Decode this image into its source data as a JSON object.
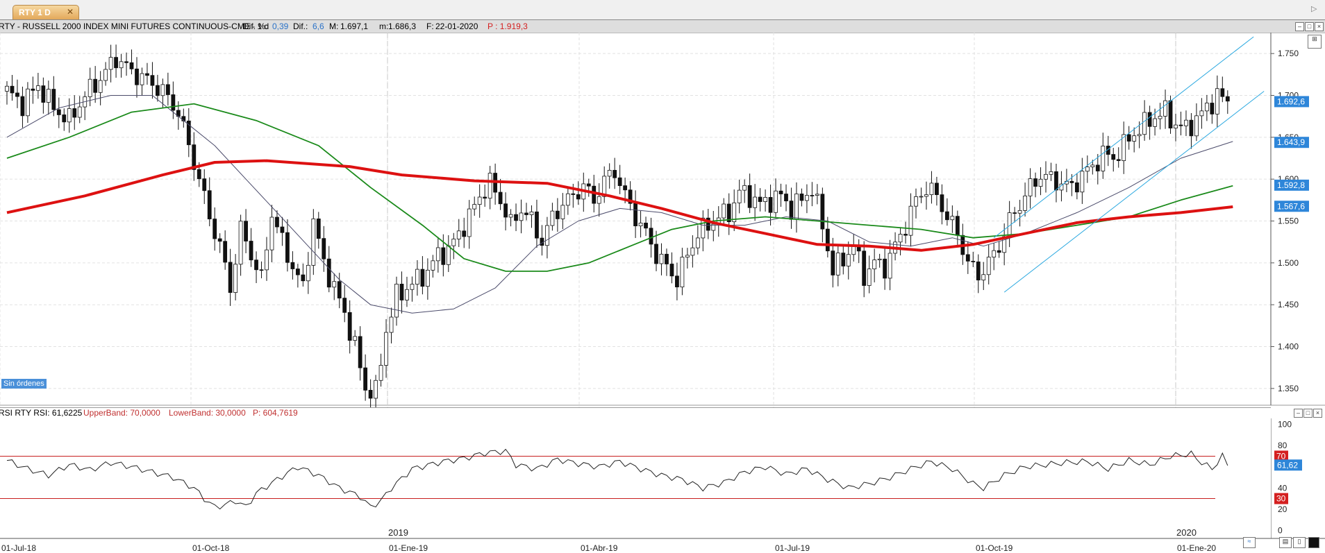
{
  "tab": {
    "label": "RTY 1 D",
    "close": "✕"
  },
  "header": {
    "symbol_text": "RTY - RUSSELL 2000 INDEX MINI FUTURES CONTINUOUS-CME -  1 d",
    "dif_pct_label": "Dif. %:",
    "dif_pct_value": "0,39",
    "dif_label": "Dif.:",
    "dif_value": "6,6",
    "max_label": "M:",
    "max_value": "1.697,1",
    "min_label": "m:",
    "min_value": "1.686,3",
    "date_label": "F:",
    "date_value": "22-01-2020",
    "p_label": "P : 1.919,3"
  },
  "orders_badge": "Sin órdenes",
  "rsi_header": {
    "name": "RSI RTY RSI: 61,6225",
    "upper": "UpperBand: 70,0000",
    "lower": "LowerBand: 30,0000",
    "p": "P: 604,7619"
  },
  "colors": {
    "sma_fast": "#4a4a6a",
    "sma_mid": "#1a8a1a",
    "sma_slow": "#dd1111",
    "channel": "#2aa8e0",
    "price_tag": "#2e86d9",
    "band_tag": "#d42020"
  },
  "chart_data": [
    {
      "type": "candlestick",
      "title": "RTY - RUSSELL 2000 INDEX MINI FUTURES CONTINUOUS-CME - 1 d",
      "x_ticks": [
        "01-Jul-18",
        "01-Oct-18",
        "01-Ene-19",
        "01-Abr-19",
        "01-Jul-19",
        "01-Oct-19",
        "01-Ene-20"
      ],
      "year_markers": [
        "2019",
        "2020"
      ],
      "y_ticks": [
        "1.750",
        "1.700",
        "1.650",
        "1.600",
        "1.550",
        "1.500",
        "1.450",
        "1.400",
        "1.350"
      ],
      "ylim": [
        1330,
        1775
      ],
      "grid": true,
      "price_tags": [
        "1.692,6",
        "1.643,9",
        "1.592,8",
        "1.567,6"
      ],
      "close_path": [
        [
          0,
          1705
        ],
        [
          3,
          1690
        ],
        [
          6,
          1712
        ],
        [
          9,
          1685
        ],
        [
          12,
          1670
        ],
        [
          15,
          1700
        ],
        [
          18,
          1720
        ],
        [
          21,
          1745
        ],
        [
          24,
          1728
        ],
        [
          27,
          1718
        ],
        [
          30,
          1705
        ],
        [
          33,
          1680
        ],
        [
          35,
          1640
        ],
        [
          37,
          1600
        ],
        [
          39,
          1555
        ],
        [
          41,
          1520
        ],
        [
          43,
          1470
        ],
        [
          45,
          1540
        ],
        [
          47,
          1510
        ],
        [
          49,
          1480
        ],
        [
          51,
          1560
        ],
        [
          53,
          1525
        ],
        [
          55,
          1495
        ],
        [
          57,
          1470
        ],
        [
          59,
          1550
        ],
        [
          61,
          1500
        ],
        [
          63,
          1470
        ],
        [
          65,
          1440
        ],
        [
          67,
          1400
        ],
        [
          69,
          1350
        ],
        [
          71,
          1345
        ],
        [
          73,
          1420
        ],
        [
          75,
          1460
        ],
        [
          77,
          1470
        ],
        [
          79,
          1480
        ],
        [
          81,
          1490
        ],
        [
          83,
          1510
        ],
        [
          85,
          1515
        ],
        [
          87,
          1535
        ],
        [
          89,
          1555
        ],
        [
          91,
          1580
        ],
        [
          93,
          1595
        ],
        [
          95,
          1575
        ],
        [
          97,
          1545
        ],
        [
          99,
          1565
        ],
        [
          101,
          1550
        ],
        [
          103,
          1525
        ],
        [
          105,
          1555
        ],
        [
          107,
          1570
        ],
        [
          109,
          1580
        ],
        [
          111,
          1592
        ],
        [
          113,
          1575
        ],
        [
          115,
          1598
        ],
        [
          117,
          1610
        ],
        [
          119,
          1580
        ],
        [
          121,
          1555
        ],
        [
          123,
          1535
        ],
        [
          125,
          1510
        ],
        [
          127,
          1495
        ],
        [
          129,
          1480
        ],
        [
          131,
          1510
        ],
        [
          133,
          1535
        ],
        [
          135,
          1545
        ],
        [
          137,
          1555
        ],
        [
          139,
          1560
        ],
        [
          141,
          1585
        ],
        [
          143,
          1580
        ],
        [
          145,
          1570
        ],
        [
          147,
          1575
        ],
        [
          149,
          1580
        ],
        [
          151,
          1565
        ],
        [
          153,
          1575
        ],
        [
          155,
          1590
        ],
        [
          157,
          1545
        ],
        [
          159,
          1490
        ],
        [
          161,
          1505
        ],
        [
          163,
          1520
        ],
        [
          165,
          1485
        ],
        [
          167,
          1500
        ],
        [
          169,
          1495
        ],
        [
          171,
          1520
        ],
        [
          173,
          1545
        ],
        [
          175,
          1575
        ],
        [
          177,
          1590
        ],
        [
          179,
          1580
        ],
        [
          181,
          1555
        ],
        [
          183,
          1535
        ],
        [
          185,
          1500
        ],
        [
          187,
          1485
        ],
        [
          189,
          1500
        ],
        [
          191,
          1520
        ],
        [
          193,
          1550
        ],
        [
          195,
          1570
        ],
        [
          197,
          1590
        ],
        [
          199,
          1605
        ],
        [
          201,
          1600
        ],
        [
          203,
          1595
        ],
        [
          205,
          1590
        ],
        [
          207,
          1605
        ],
        [
          209,
          1615
        ],
        [
          211,
          1630
        ],
        [
          213,
          1625
        ],
        [
          215,
          1640
        ],
        [
          217,
          1655
        ],
        [
          219,
          1665
        ],
        [
          221,
          1675
        ],
        [
          223,
          1680
        ],
        [
          225,
          1665
        ],
        [
          227,
          1660
        ],
        [
          229,
          1672
        ],
        [
          231,
          1685
        ],
        [
          233,
          1700
        ],
        [
          235,
          1692
        ]
      ],
      "sma_fast_path": [
        [
          0,
          1650
        ],
        [
          10,
          1685
        ],
        [
          20,
          1700
        ],
        [
          28,
          1700
        ],
        [
          34,
          1670
        ],
        [
          40,
          1640
        ],
        [
          46,
          1600
        ],
        [
          52,
          1560
        ],
        [
          58,
          1520
        ],
        [
          64,
          1480
        ],
        [
          70,
          1450
        ],
        [
          78,
          1440
        ],
        [
          86,
          1445
        ],
        [
          94,
          1470
        ],
        [
          102,
          1520
        ],
        [
          110,
          1550
        ],
        [
          118,
          1565
        ],
        [
          126,
          1560
        ],
        [
          134,
          1545
        ],
        [
          142,
          1545
        ],
        [
          150,
          1555
        ],
        [
          158,
          1550
        ],
        [
          166,
          1525
        ],
        [
          174,
          1520
        ],
        [
          182,
          1530
        ],
        [
          188,
          1520
        ],
        [
          196,
          1535
        ],
        [
          206,
          1560
        ],
        [
          216,
          1590
        ],
        [
          226,
          1625
        ],
        [
          236,
          1645
        ]
      ],
      "sma_mid_path": [
        [
          0,
          1625
        ],
        [
          12,
          1650
        ],
        [
          24,
          1680
        ],
        [
          36,
          1690
        ],
        [
          48,
          1670
        ],
        [
          60,
          1640
        ],
        [
          70,
          1590
        ],
        [
          80,
          1545
        ],
        [
          88,
          1505
        ],
        [
          96,
          1490
        ],
        [
          104,
          1490
        ],
        [
          112,
          1500
        ],
        [
          120,
          1520
        ],
        [
          128,
          1540
        ],
        [
          136,
          1550
        ],
        [
          146,
          1555
        ],
        [
          156,
          1550
        ],
        [
          166,
          1545
        ],
        [
          176,
          1540
        ],
        [
          186,
          1530
        ],
        [
          196,
          1535
        ],
        [
          206,
          1545
        ],
        [
          216,
          1555
        ],
        [
          226,
          1575
        ],
        [
          236,
          1592
        ]
      ],
      "sma_slow_path": [
        [
          0,
          1560
        ],
        [
          15,
          1580
        ],
        [
          30,
          1605
        ],
        [
          40,
          1620
        ],
        [
          50,
          1622
        ],
        [
          66,
          1615
        ],
        [
          76,
          1605
        ],
        [
          90,
          1598
        ],
        [
          104,
          1595
        ],
        [
          116,
          1580
        ],
        [
          126,
          1565
        ],
        [
          136,
          1548
        ],
        [
          146,
          1535
        ],
        [
          156,
          1522
        ],
        [
          166,
          1520
        ],
        [
          176,
          1515
        ],
        [
          186,
          1522
        ],
        [
          196,
          1535
        ],
        [
          206,
          1548
        ],
        [
          216,
          1555
        ],
        [
          226,
          1560
        ],
        [
          236,
          1567
        ]
      ],
      "channel": {
        "upper": [
          [
            190,
            1530
          ],
          [
            240,
            1770
          ]
        ],
        "lower": [
          [
            192,
            1465
          ],
          [
            242,
            1705
          ]
        ]
      }
    },
    {
      "type": "line",
      "title": "RSI RTY RSI: 61,6225",
      "y_ticks": [
        "100",
        "80",
        "60",
        "40",
        "20",
        "0"
      ],
      "ylim": [
        -5,
        105
      ],
      "upper_band": 70,
      "lower_band": 30,
      "band_tags": [
        "70",
        "30"
      ],
      "value_tag": "61,62",
      "rsi_path": [
        [
          0,
          66
        ],
        [
          4,
          58
        ],
        [
          8,
          52
        ],
        [
          12,
          62
        ],
        [
          16,
          57
        ],
        [
          20,
          64
        ],
        [
          24,
          60
        ],
        [
          28,
          55
        ],
        [
          32,
          50
        ],
        [
          36,
          40
        ],
        [
          38,
          30
        ],
        [
          40,
          22
        ],
        [
          42,
          24
        ],
        [
          44,
          28
        ],
        [
          46,
          22
        ],
        [
          48,
          35
        ],
        [
          52,
          48
        ],
        [
          56,
          60
        ],
        [
          60,
          52
        ],
        [
          64,
          40
        ],
        [
          68,
          32
        ],
        [
          70,
          22
        ],
        [
          72,
          28
        ],
        [
          74,
          40
        ],
        [
          78,
          58
        ],
        [
          84,
          65
        ],
        [
          88,
          68
        ],
        [
          92,
          73
        ],
        [
          96,
          75
        ],
        [
          98,
          62
        ],
        [
          102,
          58
        ],
        [
          106,
          67
        ],
        [
          110,
          63
        ],
        [
          114,
          60
        ],
        [
          118,
          65
        ],
        [
          122,
          58
        ],
        [
          126,
          52
        ],
        [
          130,
          48
        ],
        [
          134,
          40
        ],
        [
          138,
          45
        ],
        [
          142,
          55
        ],
        [
          146,
          60
        ],
        [
          150,
          53
        ],
        [
          154,
          58
        ],
        [
          158,
          48
        ],
        [
          162,
          40
        ],
        [
          166,
          44
        ],
        [
          170,
          50
        ],
        [
          174,
          58
        ],
        [
          178,
          65
        ],
        [
          182,
          58
        ],
        [
          186,
          44
        ],
        [
          188,
          40
        ],
        [
          192,
          52
        ],
        [
          196,
          60
        ],
        [
          200,
          62
        ],
        [
          204,
          64
        ],
        [
          208,
          65
        ],
        [
          212,
          58
        ],
        [
          216,
          66
        ],
        [
          220,
          62
        ],
        [
          224,
          70
        ],
        [
          228,
          72
        ],
        [
          230,
          64
        ],
        [
          232,
          58
        ],
        [
          234,
          70
        ],
        [
          235,
          62
        ]
      ]
    }
  ]
}
